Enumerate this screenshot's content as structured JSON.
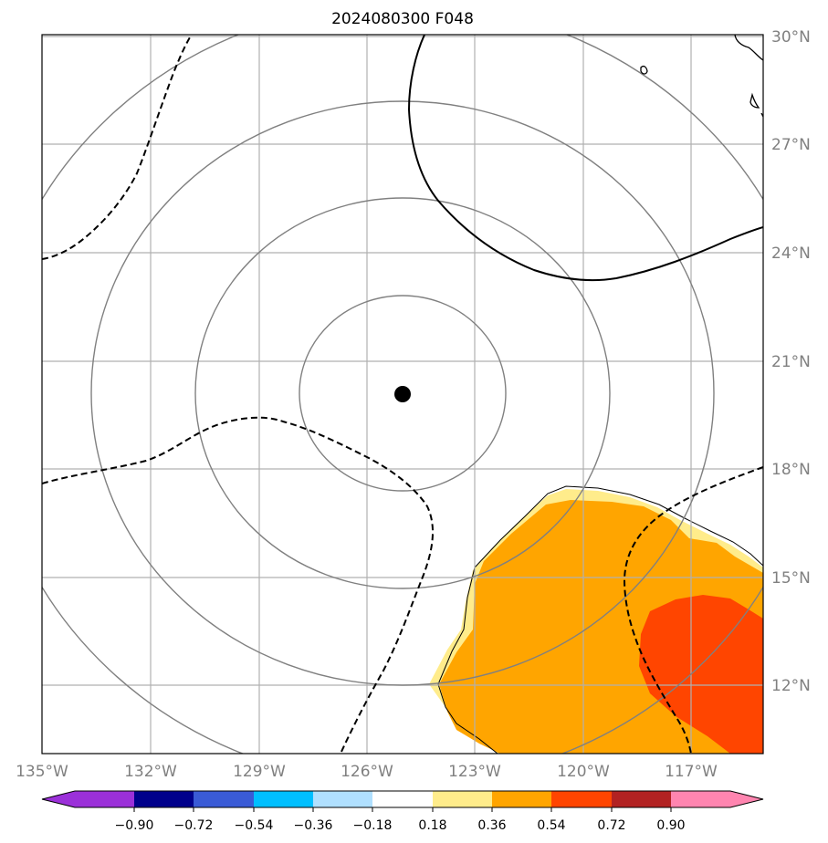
{
  "title": "2024080300 F048",
  "x_ticks": [
    "135°W",
    "132°W",
    "129°W",
    "126°W",
    "123°W",
    "120°W",
    "117°W"
  ],
  "y_ticks": [
    "30°N",
    "27°N",
    "24°N",
    "21°N",
    "18°N",
    "15°N",
    "12°N"
  ],
  "colorbar": {
    "labels": [
      "−0.90",
      "−0.72",
      "−0.54",
      "−0.36",
      "−0.18",
      "0.18",
      "0.36",
      "0.54",
      "0.72",
      "0.90"
    ],
    "colors": [
      "#9b30d9",
      "#00008b",
      "#3a5bd6",
      "#00bfff",
      "#b0e0ff",
      "#ffffff",
      "#ffec8b",
      "#ffa500",
      "#ff4500",
      "#b22222",
      "#ff85b0"
    ]
  },
  "center_marker": {
    "label": "storm-center",
    "lon": -125,
    "lat": 20
  },
  "colors": {
    "orange": "#ffa500",
    "red_orange": "#ff4500",
    "light_yellow": "#ffec8b"
  }
}
